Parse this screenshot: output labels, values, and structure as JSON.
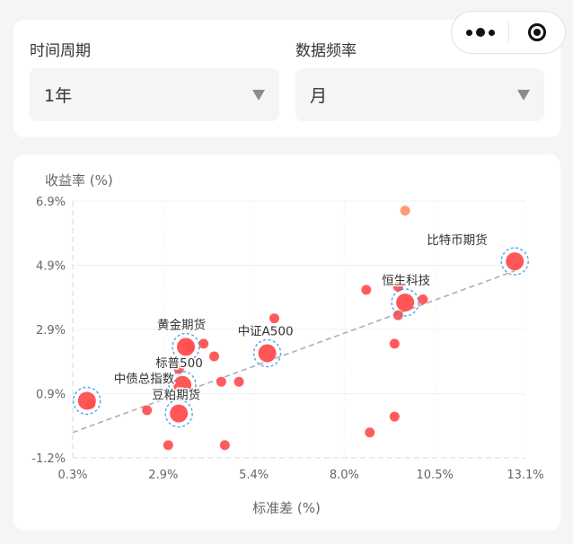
{
  "filters": {
    "period_label": "时间周期",
    "period_value": "1年",
    "frequency_label": "数据频率",
    "frequency_value": "月"
  },
  "capsule": {
    "more_icon": "more-dots-icon",
    "close_icon": "target-close-icon"
  },
  "colors": {
    "point": "#ff4d4f",
    "highlight": "#ff8a5c",
    "ring": "#3a8ee6",
    "trend": "#aaaaaa"
  },
  "chart_data": {
    "type": "scatter",
    "title": "",
    "xlabel": "标准差 (%)",
    "ylabel": "收益率 (%)",
    "xlim": [
      0.3,
      13.1
    ],
    "ylim": [
      -1.2,
      6.9
    ],
    "xticks": [
      "0.3%",
      "2.9%",
      "5.4%",
      "8.0%",
      "10.5%",
      "13.1%"
    ],
    "yticks": [
      "-1.2%",
      "0.9%",
      "2.9%",
      "4.9%",
      "6.9%"
    ],
    "trendline": {
      "x": [
        0.3,
        12.8
      ],
      "y": [
        -0.4,
        4.7
      ]
    },
    "points": [
      {
        "x": 0.8,
        "y": 0.5
      },
      {
        "x": 2.4,
        "y": 0.3
      },
      {
        "x": 3.0,
        "y": -0.8
      },
      {
        "x": 3.3,
        "y": 1.6
      },
      {
        "x": 3.6,
        "y": 2.3
      },
      {
        "x": 4.0,
        "y": 2.4
      },
      {
        "x": 4.3,
        "y": 2.0
      },
      {
        "x": 4.5,
        "y": 1.2
      },
      {
        "x": 4.6,
        "y": -0.8
      },
      {
        "x": 5.0,
        "y": 1.2
      },
      {
        "x": 6.0,
        "y": 3.2
      },
      {
        "x": 8.6,
        "y": 4.1
      },
      {
        "x": 8.7,
        "y": -0.4
      },
      {
        "x": 9.4,
        "y": 2.4
      },
      {
        "x": 9.4,
        "y": 0.1
      },
      {
        "x": 9.5,
        "y": 3.3
      },
      {
        "x": 9.5,
        "y": 4.2
      },
      {
        "x": 10.2,
        "y": 3.8
      },
      {
        "x": 9.7,
        "y": 6.6,
        "highlight": true
      }
    ],
    "labeled_points": [
      {
        "name": "比特币期货",
        "x": 12.8,
        "y": 5.0
      },
      {
        "name": "恒生科技",
        "x": 9.7,
        "y": 3.7
      },
      {
        "name": "黄金期货",
        "x": 3.5,
        "y": 2.3
      },
      {
        "name": "中证A500",
        "x": 5.8,
        "y": 2.1
      },
      {
        "name": "标普500",
        "x": 3.4,
        "y": 1.1
      },
      {
        "name": "中债总指数",
        "x": 0.7,
        "y": 0.6
      },
      {
        "name": "豆粕期货",
        "x": 3.3,
        "y": 0.2
      }
    ]
  }
}
